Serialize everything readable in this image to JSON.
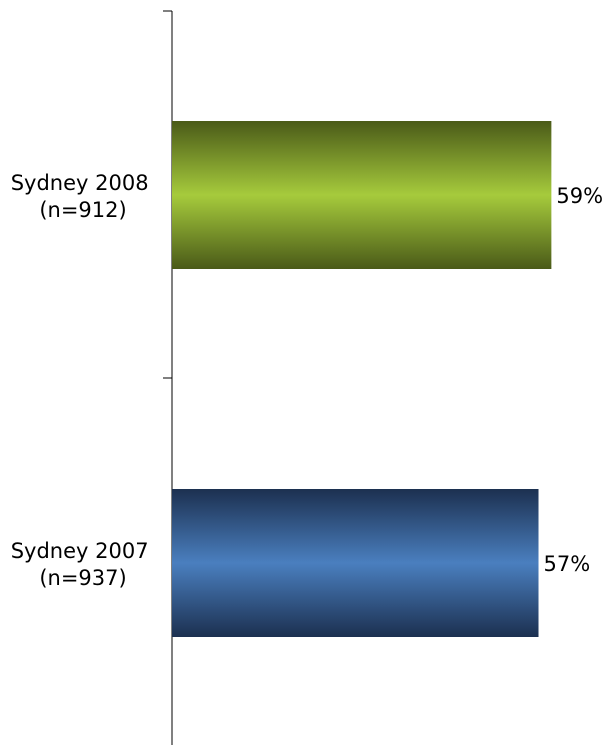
{
  "chart_data": {
    "type": "bar",
    "orientation": "horizontal",
    "categories": [
      {
        "line1": "Sydney 2008",
        "line2": "(n=912)"
      },
      {
        "line1": "Sydney 2007",
        "line2": "(n=937)"
      }
    ],
    "values": [
      59,
      57
    ],
    "value_labels": [
      "59%",
      "57%"
    ],
    "bar_colors": [
      {
        "edge": "#4a5a18",
        "mid": "#a6cb3c"
      },
      {
        "edge": "#1c3050",
        "mid": "#4a7fbf"
      }
    ],
    "axis_color": "#000000",
    "xlim": [
      0,
      100
    ],
    "grid": false,
    "legend": "none"
  }
}
